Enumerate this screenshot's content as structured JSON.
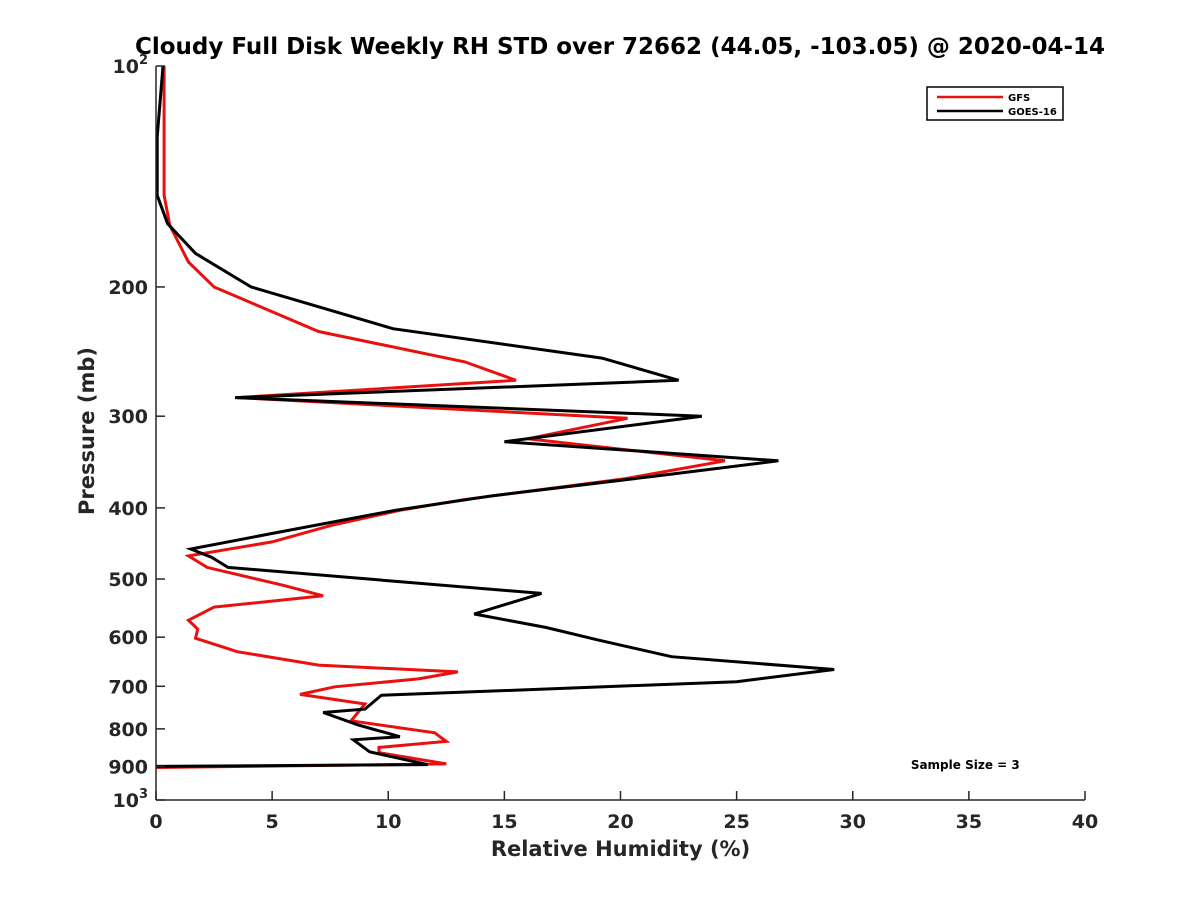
{
  "chart_data": {
    "type": "line",
    "title": "Cloudy Full Disk Weekly RH STD over 72662 (44.05, -103.05) @ 2020-04-14",
    "xlabel": "Relative Humidity (%)",
    "ylabel": "Pressure (mb)",
    "xlim": [
      0,
      40
    ],
    "ylim": [
      100,
      1000
    ],
    "yscale": "log",
    "y_reversed": true,
    "grid": false,
    "legend_position": "top-right",
    "x_ticks": [
      {
        "value": 0,
        "label": "0"
      },
      {
        "value": 5,
        "label": "5"
      },
      {
        "value": 10,
        "label": "10"
      },
      {
        "value": 15,
        "label": "15"
      },
      {
        "value": 20,
        "label": "20"
      },
      {
        "value": 25,
        "label": "25"
      },
      {
        "value": 30,
        "label": "30"
      },
      {
        "value": 35,
        "label": "35"
      },
      {
        "value": 40,
        "label": "40"
      }
    ],
    "y_ticks": [
      {
        "value": 100,
        "base": "10",
        "exp": "2"
      },
      {
        "value": 200,
        "label": "200"
      },
      {
        "value": 300,
        "label": "300"
      },
      {
        "value": 400,
        "label": "400"
      },
      {
        "value": 500,
        "label": "500"
      },
      {
        "value": 600,
        "label": "600"
      },
      {
        "value": 700,
        "label": "700"
      },
      {
        "value": 800,
        "label": "800"
      },
      {
        "value": 900,
        "label": "900"
      },
      {
        "value": 1000,
        "base": "10",
        "exp": "3"
      }
    ],
    "series": [
      {
        "name": "GFS",
        "color": "#e8110f",
        "points": [
          [
            0.35,
            100
          ],
          [
            0.35,
            125
          ],
          [
            0.35,
            150
          ],
          [
            0.6,
            165
          ],
          [
            1.4,
            185
          ],
          [
            2.5,
            200
          ],
          [
            7.0,
            230
          ],
          [
            13.3,
            253
          ],
          [
            15.5,
            268
          ],
          [
            3.5,
            283
          ],
          [
            20.3,
            302
          ],
          [
            16.0,
            322
          ],
          [
            24.5,
            345
          ],
          [
            20.2,
            365
          ],
          [
            13.2,
            390
          ],
          [
            10.5,
            403
          ],
          [
            7.5,
            423
          ],
          [
            5.0,
            445
          ],
          [
            1.4,
            465
          ],
          [
            2.2,
            482
          ],
          [
            5.5,
            510
          ],
          [
            7.2,
            527
          ],
          [
            2.5,
            546
          ],
          [
            1.4,
            569
          ],
          [
            1.8,
            585
          ],
          [
            1.7,
            602
          ],
          [
            3.5,
            628
          ],
          [
            7.0,
            655
          ],
          [
            13.0,
            669
          ],
          [
            11.3,
            684
          ],
          [
            7.7,
            701
          ],
          [
            6.2,
            718
          ],
          [
            9.0,
            740
          ],
          [
            8.4,
            780
          ],
          [
            12.0,
            810
          ],
          [
            12.5,
            832
          ],
          [
            9.6,
            848
          ],
          [
            9.6,
            862
          ],
          [
            12.5,
            893
          ],
          [
            0,
            903
          ]
        ]
      },
      {
        "name": "GOES-16",
        "color": "#000000",
        "points": [
          [
            0.3,
            100
          ],
          [
            0.05,
            125
          ],
          [
            0.05,
            150
          ],
          [
            0.5,
            164
          ],
          [
            1.7,
            180
          ],
          [
            4.1,
            200
          ],
          [
            10.2,
            228
          ],
          [
            19.2,
            250
          ],
          [
            22.5,
            268
          ],
          [
            3.4,
            283
          ],
          [
            23.5,
            300
          ],
          [
            15.0,
            325
          ],
          [
            26.8,
            345
          ],
          [
            21.5,
            362
          ],
          [
            14.5,
            385
          ],
          [
            10.3,
            403
          ],
          [
            4.9,
            434
          ],
          [
            1.5,
            455
          ],
          [
            2.4,
            467
          ],
          [
            3.1,
            482
          ],
          [
            16.6,
            523
          ],
          [
            13.7,
            558
          ],
          [
            16.8,
            582
          ],
          [
            19.0,
            605
          ],
          [
            22.2,
            638
          ],
          [
            29.2,
            664
          ],
          [
            25.0,
            690
          ],
          [
            9.7,
            720
          ],
          [
            9.0,
            752
          ],
          [
            7.2,
            760
          ],
          [
            8.7,
            790
          ],
          [
            10.5,
            820
          ],
          [
            8.5,
            828
          ],
          [
            9.2,
            860
          ],
          [
            11.7,
            895
          ],
          [
            0,
            900
          ]
        ]
      }
    ],
    "annotations": [
      {
        "text": "Sample Size = 3",
        "x": 32.5,
        "y": 893
      }
    ]
  }
}
